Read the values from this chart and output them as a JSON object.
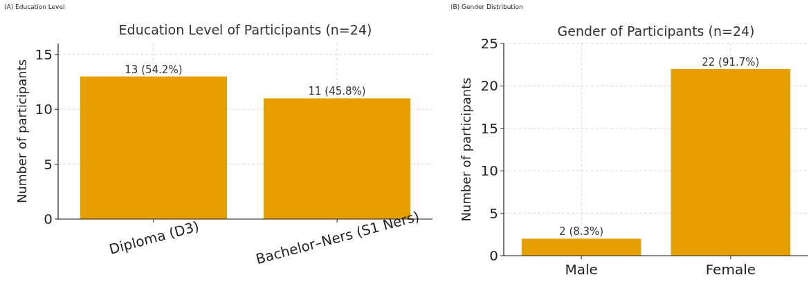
{
  "chart_data": [
    {
      "type": "bar",
      "subtitle": "(A) Education Level",
      "title": "Education Level of Participants (n=24)",
      "ylabel": "Number of participants",
      "categories": [
        "Diploma (D3)",
        "Bachelor–Ners (S1 Ners)"
      ],
      "values": [
        13,
        11
      ],
      "value_labels": [
        "13 (54.2%)",
        "11 (45.8%)"
      ],
      "color": "#e69f00",
      "ylim": [
        0,
        16
      ],
      "yticks": [
        0,
        5,
        10,
        15
      ],
      "grid": true
    },
    {
      "type": "bar",
      "subtitle": "(B) Gender Distribution",
      "title": "Gender of Participants (n=24)",
      "ylabel": "Number of participants",
      "categories": [
        "Male",
        "Female"
      ],
      "values": [
        2,
        22
      ],
      "value_labels": [
        "2 (8.3%)",
        "22 (91.7%)"
      ],
      "color": "#e69f00",
      "ylim": [
        0,
        25
      ],
      "yticks": [
        0,
        5,
        10,
        15,
        20,
        25
      ],
      "grid": true
    }
  ]
}
